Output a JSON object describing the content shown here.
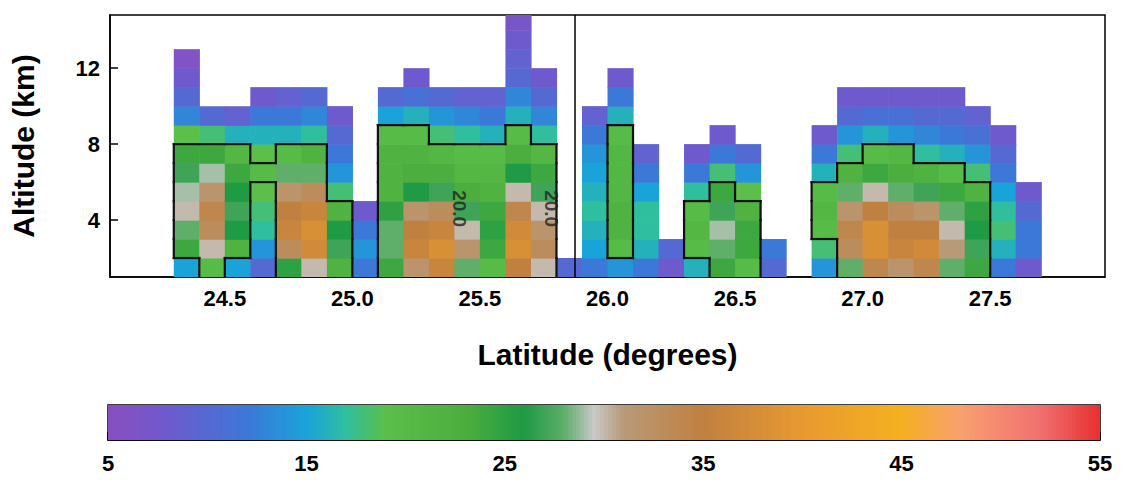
{
  "chart_data": {
    "type": "heatmap",
    "x_label": "Latitude (degrees)",
    "y_label": "Altitude (km)",
    "xlim": [
      24.05,
      27.95
    ],
    "xticks": [
      24.5,
      {
        "value": 25,
        "label": "25.0"
      },
      25.5,
      {
        "value": 26,
        "label": "26.0"
      },
      26.5,
      {
        "value": 27,
        "label": "27.0"
      },
      27.5
    ],
    "ylim": [
      1,
      14.8
    ],
    "yticks": [
      4,
      8,
      12
    ],
    "grid": false,
    "lat": [
      24.35,
      24.45,
      24.55,
      24.65,
      24.75,
      24.85,
      24.95,
      25.05,
      25.15,
      25.25,
      25.35,
      25.45,
      25.55,
      25.65,
      25.75,
      25.85,
      25.95,
      26.05,
      26.15,
      26.25,
      26.35,
      26.45,
      26.55,
      26.65,
      26.75,
      26.85,
      26.95,
      27.05,
      27.15,
      27.25,
      27.35,
      27.45,
      27.55,
      27.65
    ],
    "alt": [
      1.5,
      2.5,
      3.5,
      4.5,
      5.5,
      6.5,
      7.5,
      8.5,
      9.5,
      10.5,
      11.5,
      12.5,
      13.5,
      14.5
    ],
    "dbz_by_lat": [
      [
        15,
        24,
        28,
        30,
        29,
        27,
        24,
        19,
        13,
        10,
        8,
        6,
        null,
        null
      ],
      [
        20,
        30,
        33,
        34,
        32,
        29,
        24,
        18,
        10,
        null,
        null,
        null,
        null,
        null
      ],
      [
        15,
        22,
        26,
        27,
        26,
        24,
        21,
        16,
        9,
        null,
        null,
        null,
        null,
        null
      ],
      [
        10,
        14,
        17,
        18,
        19,
        20,
        19,
        16,
        12,
        8,
        null,
        null,
        null,
        null
      ],
      [
        25,
        33,
        36,
        35,
        32,
        28,
        20,
        16,
        12,
        9,
        null,
        null,
        null,
        null
      ],
      [
        30,
        37,
        38,
        36,
        33,
        28,
        22,
        17,
        13,
        10,
        null,
        null,
        null,
        null
      ],
      [
        22,
        27,
        26,
        22,
        18,
        14,
        12,
        10,
        8,
        null,
        null,
        null,
        null,
        null
      ],
      [
        12,
        14,
        12,
        8,
        null,
        null,
        null,
        null,
        null,
        null,
        null,
        null,
        null,
        null
      ],
      [
        24,
        28,
        28,
        25,
        22,
        22,
        22,
        20,
        15,
        10,
        null,
        null,
        null,
        null
      ],
      [
        32,
        36,
        35,
        32,
        26,
        23,
        22,
        20,
        16,
        11,
        8,
        null,
        null,
        null
      ],
      [
        36,
        38,
        36,
        33,
        27,
        23,
        21,
        18,
        14,
        10,
        null,
        null,
        null,
        null
      ],
      [
        28,
        32,
        30,
        27,
        23,
        21,
        20,
        17,
        13,
        9,
        null,
        null,
        null,
        null
      ],
      [
        20,
        24,
        25,
        24,
        22,
        21,
        20,
        16,
        12,
        9,
        null,
        null,
        null,
        null
      ],
      [
        35,
        38,
        37,
        34,
        30,
        26,
        23,
        20,
        16,
        13,
        10,
        9,
        8,
        7
      ],
      [
        30,
        33,
        32,
        30,
        27,
        24,
        21,
        17,
        13,
        10,
        8,
        null,
        null,
        null
      ],
      [
        10,
        null,
        null,
        null,
        null,
        null,
        null,
        null,
        null,
        null,
        null,
        null,
        null,
        null
      ],
      [
        12,
        15,
        16,
        17,
        16,
        15,
        14,
        12,
        9,
        null,
        null,
        null,
        null,
        null
      ],
      [
        14,
        20,
        22,
        22,
        21,
        21,
        21,
        20,
        16,
        12,
        8,
        null,
        null,
        null
      ],
      [
        12,
        16,
        17,
        17,
        15,
        12,
        9,
        null,
        null,
        null,
        null,
        null,
        null,
        null
      ],
      [
        8,
        10,
        null,
        null,
        null,
        null,
        null,
        null,
        null,
        null,
        null,
        null,
        null,
        null
      ],
      [
        16,
        20,
        21,
        20,
        17,
        12,
        8,
        null,
        null,
        null,
        null,
        null,
        null,
        null
      ],
      [
        24,
        28,
        29,
        27,
        24,
        18,
        12,
        8,
        null,
        null,
        null,
        null,
        null,
        null
      ],
      [
        20,
        24,
        24,
        22,
        19,
        14,
        10,
        null,
        null,
        null,
        null,
        null,
        null,
        null
      ],
      [
        10,
        12,
        null,
        null,
        null,
        null,
        null,
        null,
        null,
        null,
        null,
        null,
        null,
        null
      ],
      [
        null,
        null,
        null,
        null,
        null,
        null,
        null,
        null,
        null,
        null,
        null,
        null,
        null,
        null
      ],
      [
        14,
        18,
        20,
        21,
        20,
        16,
        12,
        8,
        null,
        null,
        null,
        null,
        null,
        null
      ],
      [
        28,
        33,
        34,
        32,
        28,
        22,
        18,
        14,
        10,
        8,
        null,
        null,
        null,
        null
      ],
      [
        34,
        38,
        38,
        35,
        30,
        24,
        20,
        16,
        11,
        8,
        null,
        null,
        null,
        null
      ],
      [
        32,
        36,
        35,
        33,
        28,
        23,
        21,
        14,
        11,
        8,
        null,
        null,
        null,
        null
      ],
      [
        34,
        37,
        35,
        32,
        27,
        22,
        17,
        13,
        10,
        8,
        null,
        null,
        null,
        null
      ],
      [
        28,
        31,
        30,
        28,
        24,
        20,
        16,
        12,
        10,
        8,
        null,
        null,
        null,
        null
      ],
      [
        24,
        27,
        26,
        25,
        22,
        18,
        14,
        11,
        9,
        null,
        null,
        null,
        null,
        null
      ],
      [
        12,
        16,
        18,
        17,
        15,
        12,
        10,
        8,
        null,
        null,
        null,
        null,
        null,
        null
      ],
      [
        8,
        12,
        12,
        10,
        8,
        null,
        null,
        null,
        null,
        null,
        null,
        null,
        null,
        null
      ]
    ],
    "contour_level": 20,
    "contour_labels": [
      {
        "text": "20.0",
        "lat": 25.42,
        "alt": 4.6
      },
      {
        "text": "20.0",
        "lat": 25.78,
        "alt": 4.6
      }
    ],
    "vertical_line": 25.87,
    "colorbar": {
      "range": [
        5,
        55
      ],
      "ticks": [
        5,
        15,
        25,
        35,
        45,
        55
      ]
    }
  }
}
